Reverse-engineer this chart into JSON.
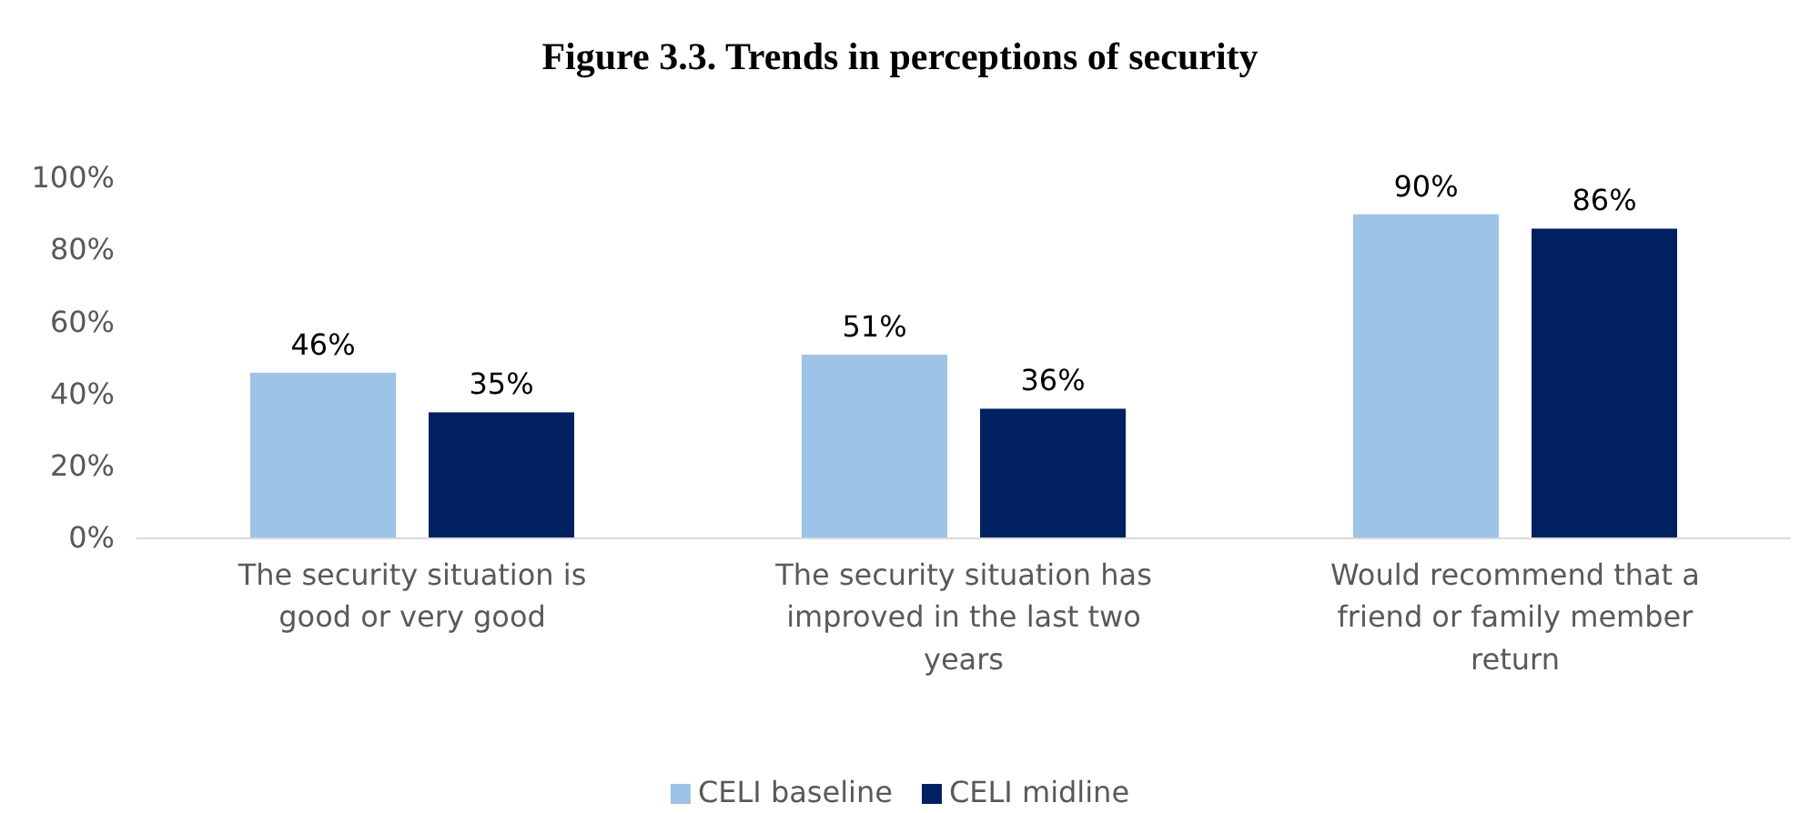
{
  "chart_data": {
    "type": "bar",
    "title": "Figure 3.3. Trends in perceptions of security",
    "categories": [
      "The security situation is good or very good",
      "The security situation has improved in the last two years",
      "Would recommend that a friend or family member return"
    ],
    "series": [
      {
        "name": "CELI baseline",
        "color": "#9dc3e6",
        "values": [
          46,
          51,
          90
        ],
        "value_labels": [
          "46%",
          "51%",
          "90%"
        ]
      },
      {
        "name": "CELI midline",
        "color": "#002060",
        "values": [
          35,
          36,
          86
        ],
        "value_labels": [
          "35%",
          "36%",
          "86%"
        ]
      }
    ],
    "ylim": [
      0,
      100
    ],
    "yticks": [
      {
        "value": 0,
        "label": "0%"
      },
      {
        "value": 20,
        "label": "20%"
      },
      {
        "value": 40,
        "label": "40%"
      },
      {
        "value": 60,
        "label": "60%"
      },
      {
        "value": 80,
        "label": "80%"
      },
      {
        "value": 100,
        "label": "100%"
      }
    ],
    "grid": false,
    "legend": "bottom"
  }
}
